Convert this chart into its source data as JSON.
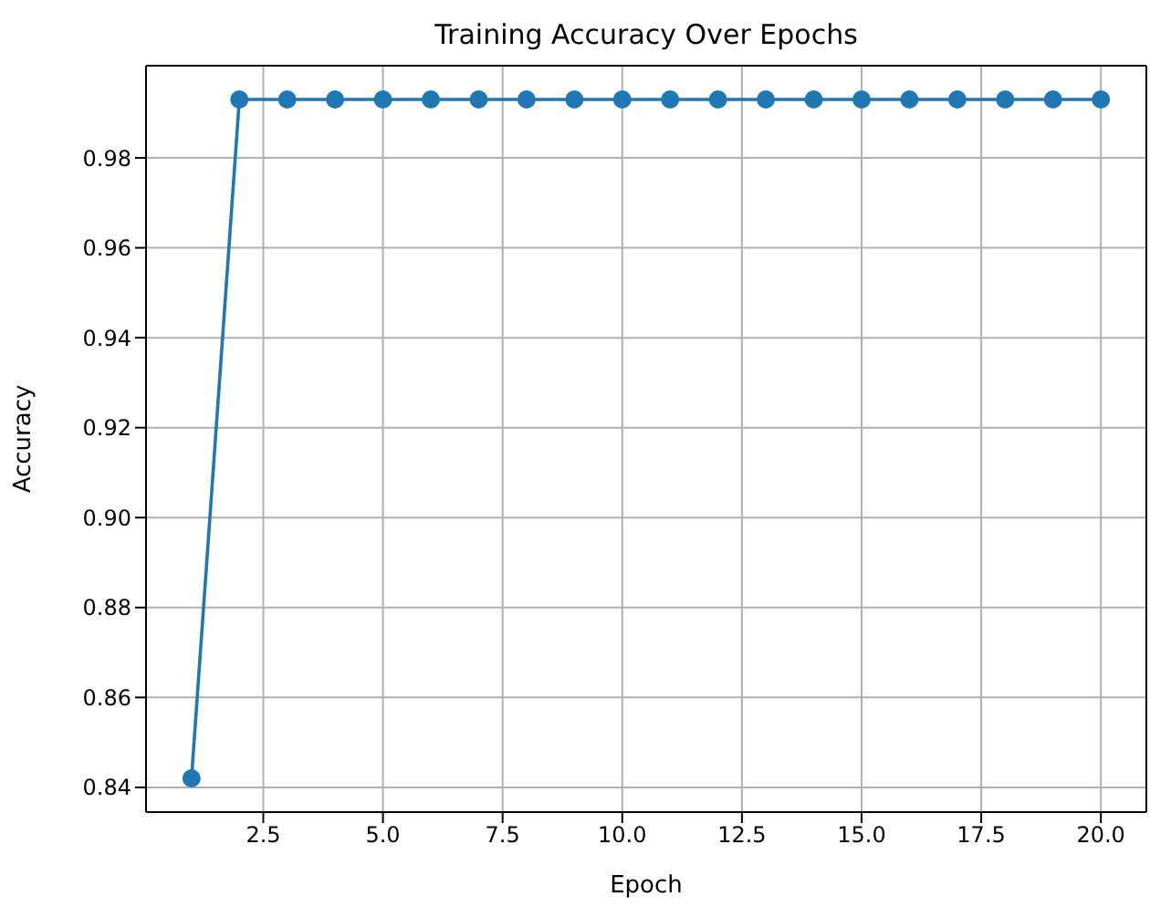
{
  "chart_data": {
    "type": "line",
    "title": "Training Accuracy Over Epochs",
    "xlabel": "Epoch",
    "ylabel": "Accuracy",
    "x": [
      1,
      2,
      3,
      4,
      5,
      6,
      7,
      8,
      9,
      10,
      11,
      12,
      13,
      14,
      15,
      16,
      17,
      18,
      19,
      20
    ],
    "series": [
      {
        "color": "#1f77b4",
        "values": [
          0.842,
          0.993,
          0.993,
          0.993,
          0.993,
          0.993,
          0.993,
          0.993,
          0.993,
          0.993,
          0.993,
          0.993,
          0.993,
          0.993,
          0.993,
          0.993,
          0.993,
          0.993,
          0.993,
          0.993
        ]
      }
    ],
    "xlim": [
      0.05,
      20.95
    ],
    "xticks": [
      {
        "value": 2.5,
        "label": "2.5"
      },
      {
        "value": 5,
        "label": "5.0"
      },
      {
        "value": 7.5,
        "label": "7.5"
      },
      {
        "value": 10,
        "label": "10.0"
      },
      {
        "value": 12.5,
        "label": "12.5"
      },
      {
        "value": 15,
        "label": "15.0"
      },
      {
        "value": 17.5,
        "label": "17.5"
      },
      {
        "value": 20,
        "label": "20.0"
      }
    ],
    "ylim": [
      0.8345,
      1.0005
    ],
    "yticks": [
      {
        "value": 0.84,
        "label": "0.84"
      },
      {
        "value": 0.86,
        "label": "0.86"
      },
      {
        "value": 0.88,
        "label": "0.88"
      },
      {
        "value": 0.9,
        "label": "0.90"
      },
      {
        "value": 0.92,
        "label": "0.92"
      },
      {
        "value": 0.94,
        "label": "0.94"
      },
      {
        "value": 0.96,
        "label": "0.96"
      },
      {
        "value": 0.98,
        "label": "0.98"
      }
    ],
    "grid": true,
    "marker": "circle",
    "line_style": "solid"
  }
}
